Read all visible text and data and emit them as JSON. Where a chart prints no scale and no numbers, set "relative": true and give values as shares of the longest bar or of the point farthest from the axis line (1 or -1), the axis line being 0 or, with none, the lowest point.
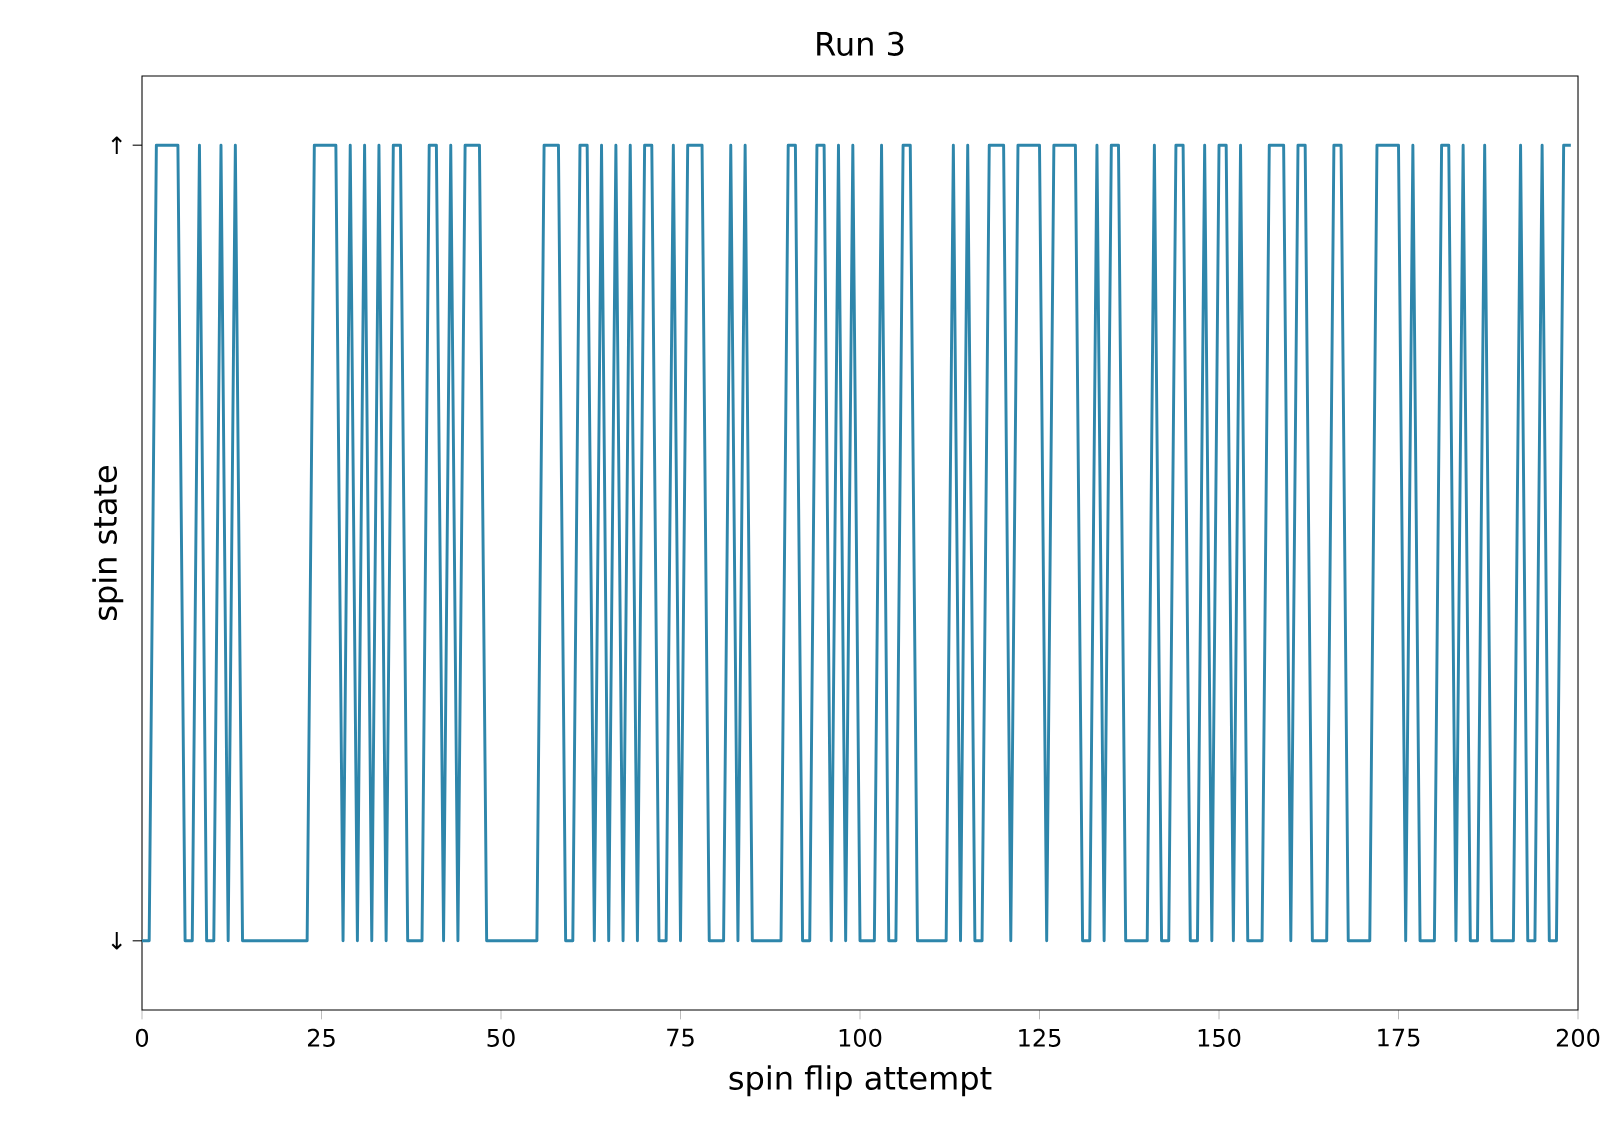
{
  "chart_data": {
    "type": "line",
    "title": "Run 3",
    "xlabel": "spin flip attempt",
    "ylabel": "spin state",
    "color": "#2e86ab",
    "x": [
      0,
      1,
      2,
      3,
      4,
      5,
      6,
      7,
      8,
      9,
      10,
      11,
      12,
      13,
      14,
      15,
      16,
      17,
      18,
      19,
      20,
      21,
      22,
      23,
      24,
      25,
      26,
      27,
      28,
      29,
      30,
      31,
      32,
      33,
      34,
      35,
      36,
      37,
      38,
      39,
      40,
      41,
      42,
      43,
      44,
      45,
      46,
      47,
      48,
      49,
      50,
      51,
      52,
      53,
      54,
      55,
      56,
      57,
      58,
      59,
      60,
      61,
      62,
      63,
      64,
      65,
      66,
      67,
      68,
      69,
      70,
      71,
      72,
      73,
      74,
      75,
      76,
      77,
      78,
      79,
      80,
      81,
      82,
      83,
      84,
      85,
      86,
      87,
      88,
      89,
      90,
      91,
      92,
      93,
      94,
      95,
      96,
      97,
      98,
      99,
      100,
      101,
      102,
      103,
      104,
      105,
      106,
      107,
      108,
      109,
      110,
      111,
      112,
      113,
      114,
      115,
      116,
      117,
      118,
      119,
      120,
      121,
      122,
      123,
      124,
      125,
      126,
      127,
      128,
      129,
      130,
      131,
      132,
      133,
      134,
      135,
      136,
      137,
      138,
      139,
      140,
      141,
      142,
      143,
      144,
      145,
      146,
      147,
      148,
      149,
      150,
      151,
      152,
      153,
      154,
      155,
      156,
      157,
      158,
      159,
      160,
      161,
      162,
      163,
      164,
      165,
      166,
      167,
      168,
      169,
      170,
      171,
      172,
      173,
      174,
      175,
      176,
      177,
      178,
      179,
      180,
      181,
      182,
      183,
      184,
      185,
      186,
      187,
      188,
      189,
      190,
      191,
      192,
      193,
      194,
      195,
      196,
      197,
      198,
      199
    ],
    "values": [
      0.08,
      0.08,
      1,
      1,
      1,
      1,
      0.08,
      0.08,
      1,
      0.08,
      0.08,
      1,
      0.08,
      1,
      0.08,
      0.08,
      0.08,
      0.08,
      0.08,
      0.08,
      0.08,
      0.08,
      0.08,
      0.08,
      1,
      1,
      1,
      1,
      0.08,
      1,
      0.08,
      1,
      0.08,
      1,
      0.08,
      1,
      1,
      0.08,
      0.08,
      0.08,
      1,
      1,
      0.08,
      1,
      0.08,
      1,
      1,
      1,
      0.08,
      0.08,
      0.08,
      0.08,
      0.08,
      0.08,
      0.08,
      0.08,
      1,
      1,
      1,
      0.08,
      0.08,
      1,
      1,
      0.08,
      1,
      0.08,
      1,
      0.08,
      1,
      0.08,
      1,
      1,
      0.08,
      0.08,
      1,
      0.08,
      1,
      1,
      1,
      0.08,
      0.08,
      0.08,
      1,
      0.08,
      1,
      0.08,
      0.08,
      0.08,
      0.08,
      0.08,
      1,
      1,
      0.08,
      0.08,
      1,
      1,
      0.08,
      1,
      0.08,
      1,
      0.08,
      0.08,
      0.08,
      1,
      0.08,
      0.08,
      1,
      1,
      0.08,
      0.08,
      0.08,
      0.08,
      0.08,
      1,
      0.08,
      1,
      0.08,
      0.08,
      1,
      1,
      1,
      0.08,
      1,
      1,
      1,
      1,
      0.08,
      1,
      1,
      1,
      1,
      0.08,
      0.08,
      1,
      0.08,
      1,
      1,
      0.08,
      0.08,
      0.08,
      0.08,
      1,
      0.08,
      0.08,
      1,
      1,
      0.08,
      0.08,
      1,
      0.08,
      1,
      1,
      0.08,
      1,
      0.08,
      0.08,
      0.08,
      1,
      1,
      1,
      0.08,
      1,
      1,
      0.08,
      0.08,
      0.08,
      1,
      1,
      0.08,
      0.08,
      0.08,
      0.08,
      1,
      1,
      1,
      1,
      0.08,
      1,
      0.08,
      0.08,
      0.08,
      1,
      1,
      0.08,
      1,
      0.08,
      0.08,
      1,
      0.08,
      0.08,
      0.08,
      0.08,
      1,
      0.08,
      0.08,
      1,
      0.08,
      0.08,
      1,
      1
    ],
    "relative": true,
    "xlim": [
      0,
      200
    ],
    "xticks": [
      0,
      25,
      50,
      75,
      100,
      125,
      150,
      175,
      200
    ],
    "annotations": [
      "↓",
      "↑"
    ]
  }
}
